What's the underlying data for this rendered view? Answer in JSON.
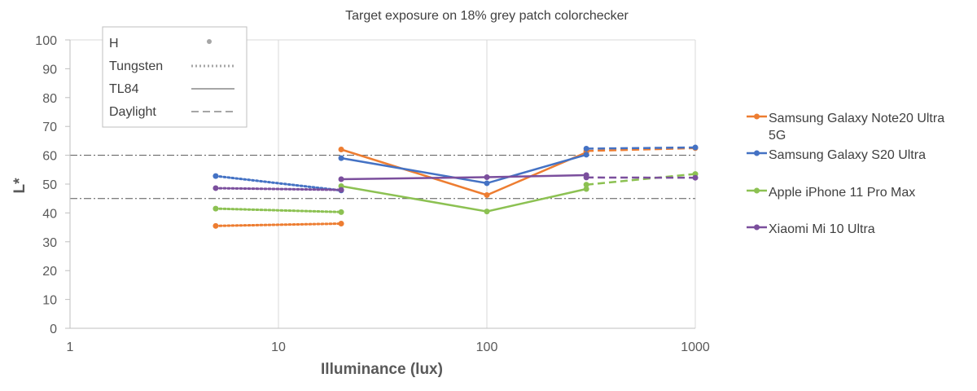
{
  "chart_data": {
    "type": "line",
    "title": "Target exposure on 18% grey patch colorchecker",
    "xlabel": "Illuminance (lux)",
    "ylabel": "L*",
    "xscale": "log",
    "xlim": [
      1,
      1000
    ],
    "ylim": [
      0,
      100
    ],
    "x_ticks": [
      "1",
      "10",
      "100",
      "1000"
    ],
    "y_ticks": [
      "0",
      "10",
      "20",
      "30",
      "40",
      "50",
      "60",
      "70",
      "80",
      "90",
      "100"
    ],
    "grid": "vertical",
    "reference_lines": [
      60,
      45
    ],
    "style_legend": {
      "placement": "top-left",
      "items": [
        {
          "label": "H",
          "style": "dot"
        },
        {
          "label": "Tungsten",
          "style": "dotted"
        },
        {
          "label": "TL84",
          "style": "solid"
        },
        {
          "label": "Daylight",
          "style": "dashed"
        }
      ]
    },
    "legend_placement": "right",
    "series": [
      {
        "name": "Samsung Galaxy Note20 Ultra 5G",
        "name_lines": [
          "Samsung Galaxy Note20 Ultra",
          "5G"
        ],
        "color": "#ED7D31",
        "segments": [
          {
            "style": "dotted",
            "points": [
              [
                5,
                35.5
              ],
              [
                20,
                36.3
              ]
            ]
          },
          {
            "style": "solid",
            "points": [
              [
                20,
                62
              ],
              [
                100,
                46.2
              ],
              [
                300,
                61
              ]
            ]
          },
          {
            "style": "dashed",
            "points": [
              [
                300,
                61.5
              ],
              [
                1000,
                62.5
              ]
            ]
          }
        ]
      },
      {
        "name": "Samsung Galaxy S20 Ultra",
        "name_lines": [
          "Samsung Galaxy S20 Ultra"
        ],
        "color": "#4472C4",
        "segments": [
          {
            "style": "dotted",
            "points": [
              [
                5,
                52.8
              ],
              [
                20,
                47.8
              ]
            ]
          },
          {
            "style": "solid",
            "points": [
              [
                20,
                59
              ],
              [
                100,
                50.3
              ],
              [
                300,
                60.2
              ]
            ]
          },
          {
            "style": "dashed",
            "points": [
              [
                300,
                62.3
              ],
              [
                1000,
                62.7
              ]
            ]
          }
        ]
      },
      {
        "name": "Apple iPhone 11 Pro Max",
        "name_lines": [
          "Apple iPhone 11 Pro Max"
        ],
        "color": "#8CC152",
        "segments": [
          {
            "style": "dotted",
            "points": [
              [
                5,
                41.5
              ],
              [
                20,
                40.3
              ]
            ]
          },
          {
            "style": "solid",
            "points": [
              [
                20,
                49.3
              ],
              [
                100,
                40.5
              ],
              [
                300,
                48.3
              ]
            ]
          },
          {
            "style": "dashed",
            "points": [
              [
                300,
                49.8
              ],
              [
                1000,
                53.5
              ]
            ]
          }
        ]
      },
      {
        "name": "Xiaomi Mi 10 Ultra",
        "name_lines": [
          "Xiaomi Mi 10 Ultra"
        ],
        "color": "#7B4F9D",
        "segments": [
          {
            "style": "dotted",
            "points": [
              [
                5,
                48.6
              ],
              [
                20,
                48
              ]
            ]
          },
          {
            "style": "solid",
            "points": [
              [
                20,
                51.7
              ],
              [
                100,
                52.4
              ],
              [
                300,
                53.1
              ]
            ]
          },
          {
            "style": "dashed",
            "points": [
              [
                300,
                52.3
              ],
              [
                1000,
                52.2
              ]
            ]
          }
        ]
      }
    ]
  }
}
